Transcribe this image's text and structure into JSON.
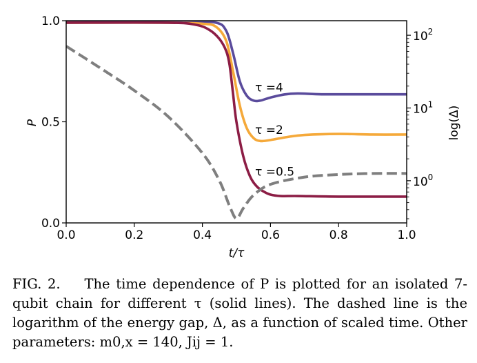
{
  "chart_data": {
    "type": "line",
    "xlabel": "t/τ",
    "ylabel": "P",
    "y2label": "log(Δ)",
    "xlim": [
      0.0,
      1.0
    ],
    "ylim": [
      0.0,
      1.0
    ],
    "y2lim_log10": [
      -0.58,
      2.2
    ],
    "x_ticks": [
      "0.0",
      "0.2",
      "0.4",
      "0.6",
      "0.8",
      "1.0"
    ],
    "y_ticks": [
      "0.0",
      "0.5",
      "1.0"
    ],
    "y2_ticks": [
      {
        "base": "10",
        "exp": "0",
        "log10": 0
      },
      {
        "base": "10",
        "exp": "1",
        "log10": 1
      },
      {
        "base": "10",
        "exp": "2",
        "log10": 2
      }
    ],
    "series": [
      {
        "name": "τ =4",
        "color": "#5a4b9c",
        "style": "solid",
        "axis": "left",
        "label_at": [
          0.555,
          0.67
        ],
        "x": [
          0.0,
          0.35,
          0.44,
          0.47,
          0.49,
          0.51,
          0.53,
          0.55,
          0.57,
          0.6,
          0.64,
          0.68,
          0.75,
          0.85,
          1.0
        ],
        "y": [
          0.995,
          0.995,
          0.99,
          0.95,
          0.84,
          0.7,
          0.63,
          0.605,
          0.605,
          0.62,
          0.635,
          0.64,
          0.636,
          0.636,
          0.636
        ]
      },
      {
        "name": "τ =2",
        "color": "#f5a93a",
        "style": "solid",
        "axis": "left",
        "label_at": [
          0.555,
          0.46
        ],
        "x": [
          0.0,
          0.3,
          0.4,
          0.44,
          0.47,
          0.49,
          0.51,
          0.53,
          0.55,
          0.57,
          0.6,
          0.65,
          0.7,
          0.8,
          0.9,
          1.0
        ],
        "y": [
          0.99,
          0.99,
          0.985,
          0.97,
          0.9,
          0.75,
          0.58,
          0.47,
          0.42,
          0.405,
          0.41,
          0.425,
          0.435,
          0.44,
          0.437,
          0.437
        ]
      },
      {
        "name": "τ =0.5",
        "color": "#8c1d45",
        "style": "solid",
        "axis": "left",
        "label_at": [
          0.555,
          0.255
        ],
        "x": [
          0.0,
          0.3,
          0.38,
          0.42,
          0.45,
          0.47,
          0.48,
          0.49,
          0.5,
          0.52,
          0.54,
          0.56,
          0.58,
          0.6,
          0.63,
          0.68,
          0.8,
          1.0
        ],
        "y": [
          0.99,
          0.99,
          0.98,
          0.955,
          0.91,
          0.85,
          0.78,
          0.64,
          0.5,
          0.33,
          0.23,
          0.18,
          0.155,
          0.14,
          0.133,
          0.133,
          0.13,
          0.13
        ]
      },
      {
        "name": "log(Δ)",
        "color": "#7f7f7f",
        "style": "dashed",
        "axis": "right",
        "x": [
          0.0,
          0.1,
          0.2,
          0.3,
          0.4,
          0.45,
          0.48,
          0.5,
          0.52,
          0.55,
          0.6,
          0.7,
          0.8,
          0.9,
          1.0
        ],
        "log10_y": [
          1.85,
          1.55,
          1.24,
          0.88,
          0.38,
          0.0,
          -0.35,
          -0.52,
          -0.38,
          -0.2,
          -0.05,
          0.05,
          0.085,
          0.1,
          0.1
        ]
      }
    ]
  },
  "caption": {
    "fig_label": "FIG. 2.",
    "text": "The time dependence of P is plotted for an isolated 7-qubit chain for different τ (solid lines). The dashed line is the logarithm of the energy gap, Δ, as a function of scaled time. Other parameters: m0,x = 140, Jij = 1."
  }
}
